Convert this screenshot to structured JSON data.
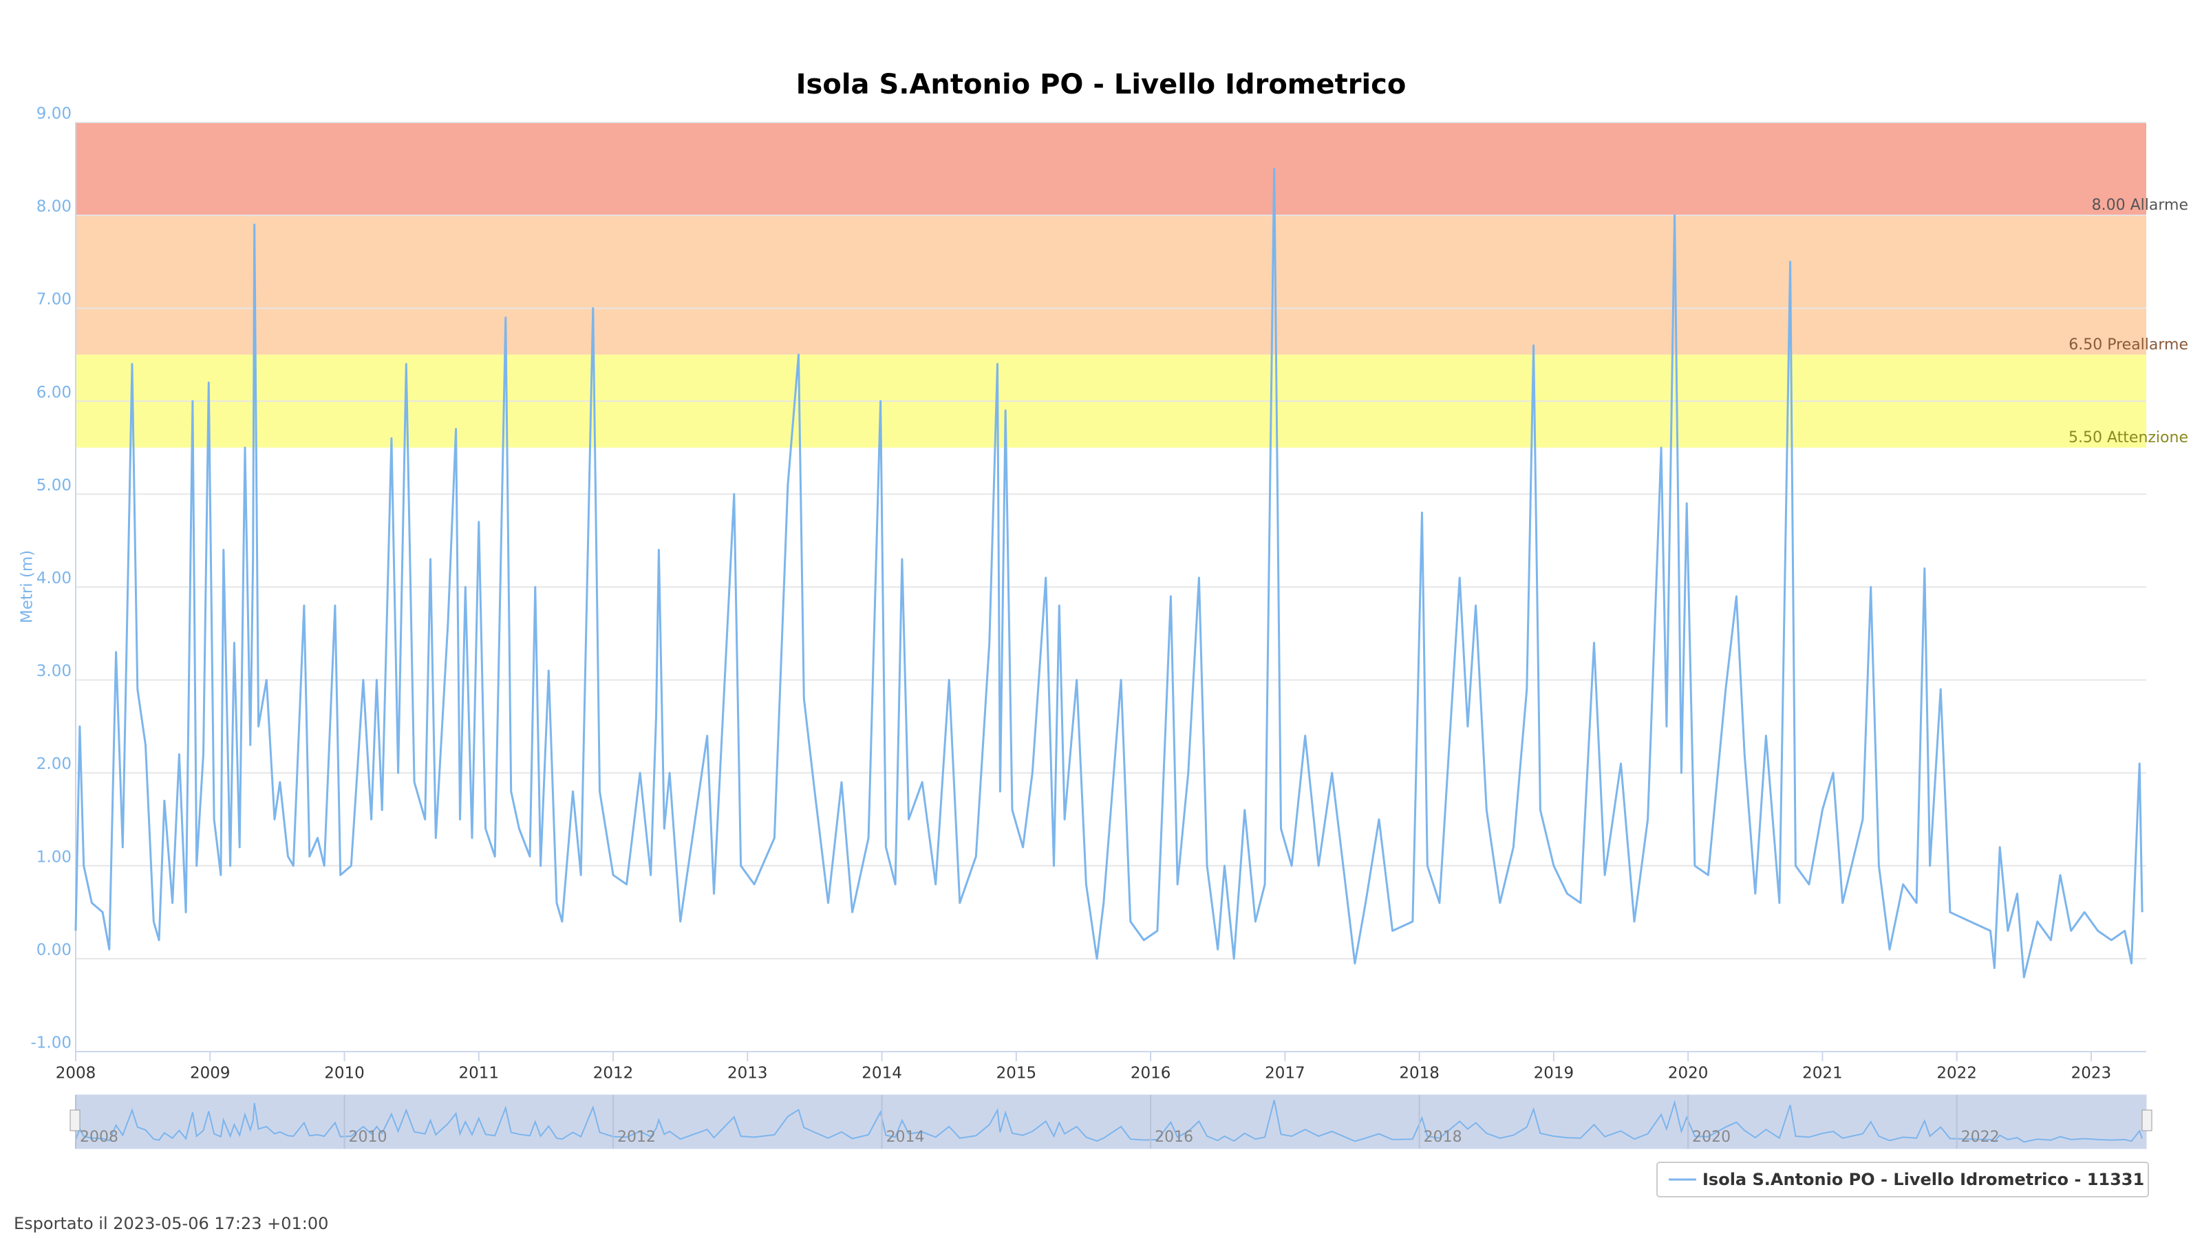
{
  "chart_data": {
    "type": "line",
    "title": "Isola S.Antonio PO - Livello Idrometrico",
    "y_label": "Metri (m)",
    "footer": "Esportato il 2023-05-06 17:23 +01:00",
    "xlim": [
      2008,
      2023.41
    ],
    "xticks": [
      2008,
      2009,
      2010,
      2011,
      2012,
      2013,
      2014,
      2015,
      2016,
      2017,
      2018,
      2019,
      2020,
      2021,
      2022,
      2023
    ],
    "navigator_xticks": [
      2008,
      2010,
      2012,
      2014,
      2016,
      2018,
      2020,
      2022
    ],
    "ylim": [
      -1,
      9
    ],
    "yticks": [
      {
        "value": -1,
        "label": "-1.00"
      },
      {
        "value": 0,
        "label": "0.00"
      },
      {
        "value": 1,
        "label": "1.00"
      },
      {
        "value": 2,
        "label": "2.00"
      },
      {
        "value": 3,
        "label": "3.00"
      },
      {
        "value": 4,
        "label": "4.00"
      },
      {
        "value": 5,
        "label": "5.00"
      },
      {
        "value": 6,
        "label": "6.00"
      },
      {
        "value": 7,
        "label": "7.00"
      },
      {
        "value": 8,
        "label": "8.00"
      },
      {
        "value": 9,
        "label": "9.00"
      }
    ],
    "grid": true,
    "bands": [
      {
        "from": 8,
        "to": 9,
        "color": "#f7a99a",
        "label": "8.00 Allarme"
      },
      {
        "from": 6.5,
        "to": 8,
        "color": "#fdd4ae",
        "label": "6.50 Preallarme"
      },
      {
        "from": 5.5,
        "to": 6.5,
        "color": "#fdfd98",
        "label": "5.50 Attenzione"
      }
    ],
    "x": [
      2008.0,
      2008.03,
      2008.06,
      2008.12,
      2008.2,
      2008.25,
      2008.3,
      2008.35,
      2008.42,
      2008.46,
      2008.52,
      2008.58,
      2008.62,
      2008.66,
      2008.72,
      2008.77,
      2008.82,
      2008.87,
      2008.9,
      2008.95,
      2008.99,
      2009.03,
      2009.08,
      2009.1,
      2009.15,
      2009.18,
      2009.22,
      2009.26,
      2009.3,
      2009.32,
      2009.33,
      2009.36,
      2009.42,
      2009.48,
      2009.52,
      2009.58,
      2009.62,
      2009.7,
      2009.74,
      2009.8,
      2009.85,
      2009.93,
      2009.97,
      2010.05,
      2010.14,
      2010.2,
      2010.24,
      2010.28,
      2010.35,
      2010.4,
      2010.46,
      2010.52,
      2010.6,
      2010.64,
      2010.68,
      2010.77,
      2010.83,
      2010.86,
      2010.9,
      2010.95,
      2011.0,
      2011.05,
      2011.12,
      2011.2,
      2011.24,
      2011.3,
      2011.38,
      2011.42,
      2011.46,
      2011.52,
      2011.58,
      2011.62,
      2011.7,
      2011.76,
      2011.85,
      2011.9,
      2012.0,
      2012.1,
      2012.2,
      2012.28,
      2012.32,
      2012.34,
      2012.38,
      2012.42,
      2012.5,
      2012.55,
      2012.6,
      2012.7,
      2012.75,
      2012.9,
      2012.95,
      2013.05,
      2013.2,
      2013.3,
      2013.38,
      2013.42,
      2013.5,
      2013.6,
      2013.7,
      2013.78,
      2013.9,
      2013.99,
      2014.03,
      2014.1,
      2014.15,
      2014.2,
      2014.3,
      2014.4,
      2014.5,
      2014.58,
      2014.7,
      2014.8,
      2014.86,
      2014.88,
      2014.92,
      2014.97,
      2015.05,
      2015.12,
      2015.22,
      2015.28,
      2015.32,
      2015.36,
      2015.45,
      2015.52,
      2015.6,
      2015.65,
      2015.78,
      2015.85,
      2015.95,
      2016.05,
      2016.15,
      2016.2,
      2016.28,
      2016.36,
      2016.42,
      2016.5,
      2016.55,
      2016.62,
      2016.7,
      2016.78,
      2016.85,
      2016.92,
      2016.97,
      2017.05,
      2017.15,
      2017.25,
      2017.35,
      2017.45,
      2017.52,
      2017.6,
      2017.7,
      2017.8,
      2017.95,
      2018.02,
      2018.06,
      2018.15,
      2018.3,
      2018.36,
      2018.42,
      2018.5,
      2018.6,
      2018.7,
      2018.8,
      2018.85,
      2018.9,
      2019.0,
      2019.1,
      2019.2,
      2019.3,
      2019.38,
      2019.5,
      2019.6,
      2019.7,
      2019.8,
      2019.84,
      2019.9,
      2019.95,
      2019.99,
      2020.05,
      2020.15,
      2020.28,
      2020.36,
      2020.42,
      2020.5,
      2020.58,
      2020.68,
      2020.76,
      2020.8,
      2020.9,
      2021.0,
      2021.08,
      2021.15,
      2021.3,
      2021.36,
      2021.42,
      2021.5,
      2021.6,
      2021.7,
      2021.76,
      2021.8,
      2021.88,
      2021.95,
      2022.1,
      2022.25,
      2022.28,
      2022.32,
      2022.38,
      2022.45,
      2022.5,
      2022.6,
      2022.7,
      2022.77,
      2022.85,
      2022.95,
      2023.05,
      2023.15,
      2023.25,
      2023.3,
      2023.36,
      2023.38
    ],
    "series": [
      {
        "name": "Isola S.Antonio PO - Livello Idrometrico - 11331",
        "color": "#7cb5ec",
        "values": [
          0.3,
          2.5,
          1.0,
          0.6,
          0.5,
          0.1,
          3.3,
          1.2,
          6.4,
          2.9,
          2.3,
          0.4,
          0.2,
          1.7,
          0.6,
          2.2,
          0.5,
          6.0,
          1.0,
          2.2,
          6.2,
          1.5,
          0.9,
          4.4,
          1.0,
          3.4,
          1.2,
          5.5,
          2.3,
          4.3,
          7.9,
          2.5,
          3.0,
          1.5,
          1.9,
          1.1,
          1.0,
          3.8,
          1.1,
          1.3,
          1.0,
          3.8,
          0.9,
          1.0,
          3.0,
          1.5,
          3.0,
          1.6,
          5.6,
          2.0,
          6.4,
          1.9,
          1.5,
          4.3,
          1.3,
          3.6,
          5.7,
          1.5,
          4.0,
          1.3,
          4.7,
          1.4,
          1.1,
          6.9,
          1.8,
          1.4,
          1.1,
          4.0,
          1.0,
          3.1,
          0.6,
          0.4,
          1.8,
          0.9,
          7.0,
          1.8,
          0.9,
          0.8,
          2.0,
          0.9,
          2.6,
          4.4,
          1.4,
          2.0,
          0.4,
          0.9,
          1.4,
          2.4,
          0.7,
          5.0,
          1.0,
          0.8,
          1.3,
          5.1,
          6.5,
          2.8,
          1.8,
          0.6,
          1.9,
          0.5,
          1.3,
          6.0,
          1.2,
          0.8,
          4.3,
          1.5,
          1.9,
          0.8,
          3.0,
          0.6,
          1.1,
          3.4,
          6.4,
          1.8,
          5.9,
          1.6,
          1.2,
          2.0,
          4.1,
          1.0,
          3.8,
          1.5,
          3.0,
          0.8,
          0.0,
          0.6,
          3.0,
          0.4,
          0.2,
          0.3,
          3.9,
          0.8,
          2.0,
          4.1,
          1.0,
          0.1,
          1.0,
          0.0,
          1.6,
          0.4,
          0.8,
          8.5,
          1.4,
          1.0,
          2.4,
          1.0,
          2.0,
          0.8,
          -0.05,
          0.6,
          1.5,
          0.3,
          0.4,
          4.8,
          1.0,
          0.6,
          4.1,
          2.5,
          3.8,
          1.6,
          0.6,
          1.2,
          2.9,
          6.6,
          1.6,
          1.0,
          0.7,
          0.6,
          3.4,
          0.9,
          2.1,
          0.4,
          1.5,
          5.5,
          2.5,
          8.0,
          2.0,
          4.9,
          1.0,
          0.9,
          2.9,
          3.9,
          2.2,
          0.7,
          2.4,
          0.6,
          7.5,
          1.0,
          0.8,
          1.6,
          2.0,
          0.6,
          1.5,
          4.0,
          1.0,
          0.1,
          0.8,
          0.6,
          4.2,
          1.0,
          2.9,
          0.5,
          0.4,
          0.3,
          -0.1,
          1.2,
          0.3,
          0.7,
          -0.2,
          0.4,
          0.2,
          0.9,
          0.3,
          0.5,
          0.3,
          0.2,
          0.3,
          -0.05,
          2.1,
          0.5
        ]
      }
    ]
  }
}
